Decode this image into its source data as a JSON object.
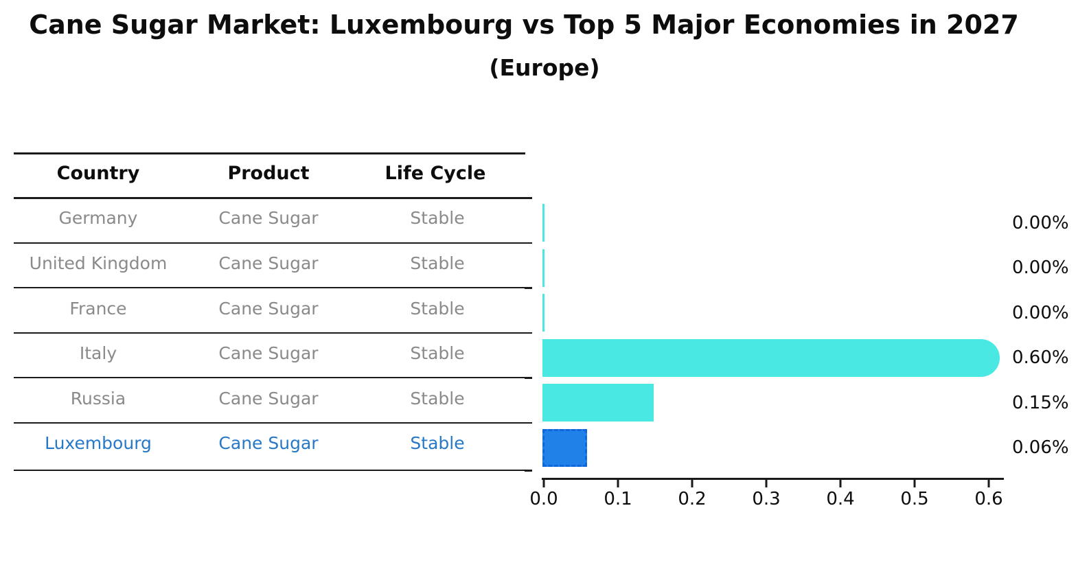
{
  "title": "Cane Sugar Market: Luxembourg vs Top 5 Major Economies in 2027",
  "subtitle": "(Europe)",
  "table": {
    "headers": [
      "Country",
      "Product",
      "Life Cycle"
    ],
    "rows": [
      {
        "country": "Germany",
        "product": "Cane Sugar",
        "life_cycle": "Stable",
        "highlighted": false
      },
      {
        "country": "United Kingdom",
        "product": "Cane Sugar",
        "life_cycle": "Stable",
        "highlighted": false
      },
      {
        "country": "France",
        "product": "Cane Sugar",
        "life_cycle": "Stable",
        "highlighted": false
      },
      {
        "country": "Italy",
        "product": "Cane Sugar",
        "life_cycle": "Stable",
        "highlighted": false
      },
      {
        "country": "Russia",
        "product": "Cane Sugar",
        "life_cycle": "Stable",
        "highlighted": false
      },
      {
        "country": "Luxembourg",
        "product": "Cane Sugar",
        "life_cycle": "Stable",
        "highlighted": true
      }
    ]
  },
  "chart_data": {
    "type": "bar",
    "orientation": "horizontal",
    "title": "Cane Sugar Market: Luxembourg vs Top 5 Major Economies in 2027 (Europe)",
    "categories": [
      "Germany",
      "United Kingdom",
      "France",
      "Italy",
      "Russia",
      "Luxembourg"
    ],
    "values": [
      0.0,
      0.0,
      0.0,
      0.6,
      0.15,
      0.06
    ],
    "value_labels": [
      "0.00%",
      "0.00%",
      "0.00%",
      "0.60%",
      "0.15%",
      "0.06%"
    ],
    "x_tick_labels": [
      "0.0",
      "0.1",
      "0.2",
      "0.3",
      "0.4",
      "0.5",
      "0.6"
    ],
    "xlim": [
      0.0,
      0.62
    ],
    "xlabel": "",
    "ylabel": "",
    "grid": false,
    "legend": false,
    "highlight_index": 5,
    "rounded_cap_index": 3
  },
  "colors": {
    "bar_cyan": "#4AE8E3",
    "bar_blue": "#2082E8",
    "bar_blue_dash_border": "#1166DB",
    "highlight_text": "#2878C8",
    "muted_text": "#8A8A8A",
    "text": "#0D0D0D",
    "line": "#1A1A1A",
    "background": "#FFFFFF"
  }
}
